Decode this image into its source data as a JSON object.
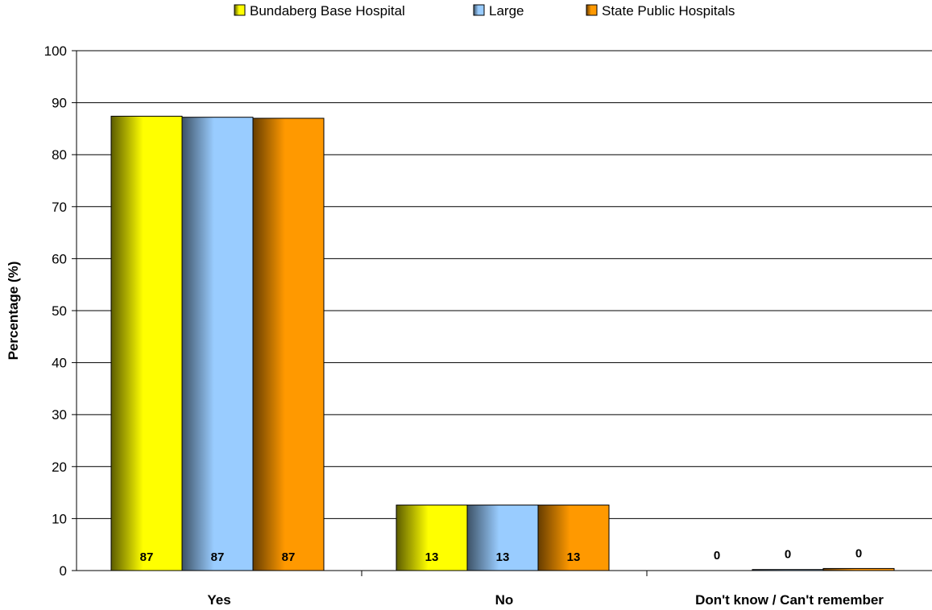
{
  "chart_data": {
    "type": "bar",
    "title": "",
    "xlabel": "",
    "ylabel": "Percentage (%)",
    "ylim": [
      0,
      100
    ],
    "yticks": [
      0,
      10,
      20,
      30,
      40,
      50,
      60,
      70,
      80,
      90,
      100
    ],
    "grid": "horizontal",
    "legend_position": "top",
    "categories": [
      "Yes",
      "No",
      "Don't know / Can't remember"
    ],
    "series": [
      {
        "name": "Bundaberg Base Hospital",
        "values": [
          87.4,
          12.6,
          0.0
        ],
        "labels": [
          "87",
          "13",
          "0"
        ],
        "color_light": "#ffff00",
        "color_dark": "#5c5c00"
      },
      {
        "name": "Large",
        "values": [
          87.2,
          12.6,
          0.2
        ],
        "labels": [
          "87",
          "13",
          "0"
        ],
        "color_light": "#99ccff",
        "color_dark": "#3d5266"
      },
      {
        "name": "State Public Hospitals",
        "values": [
          87.0,
          12.6,
          0.4
        ],
        "labels": [
          "87",
          "13",
          "0"
        ],
        "color_light": "#ff9900",
        "color_dark": "#663d00"
      }
    ]
  }
}
